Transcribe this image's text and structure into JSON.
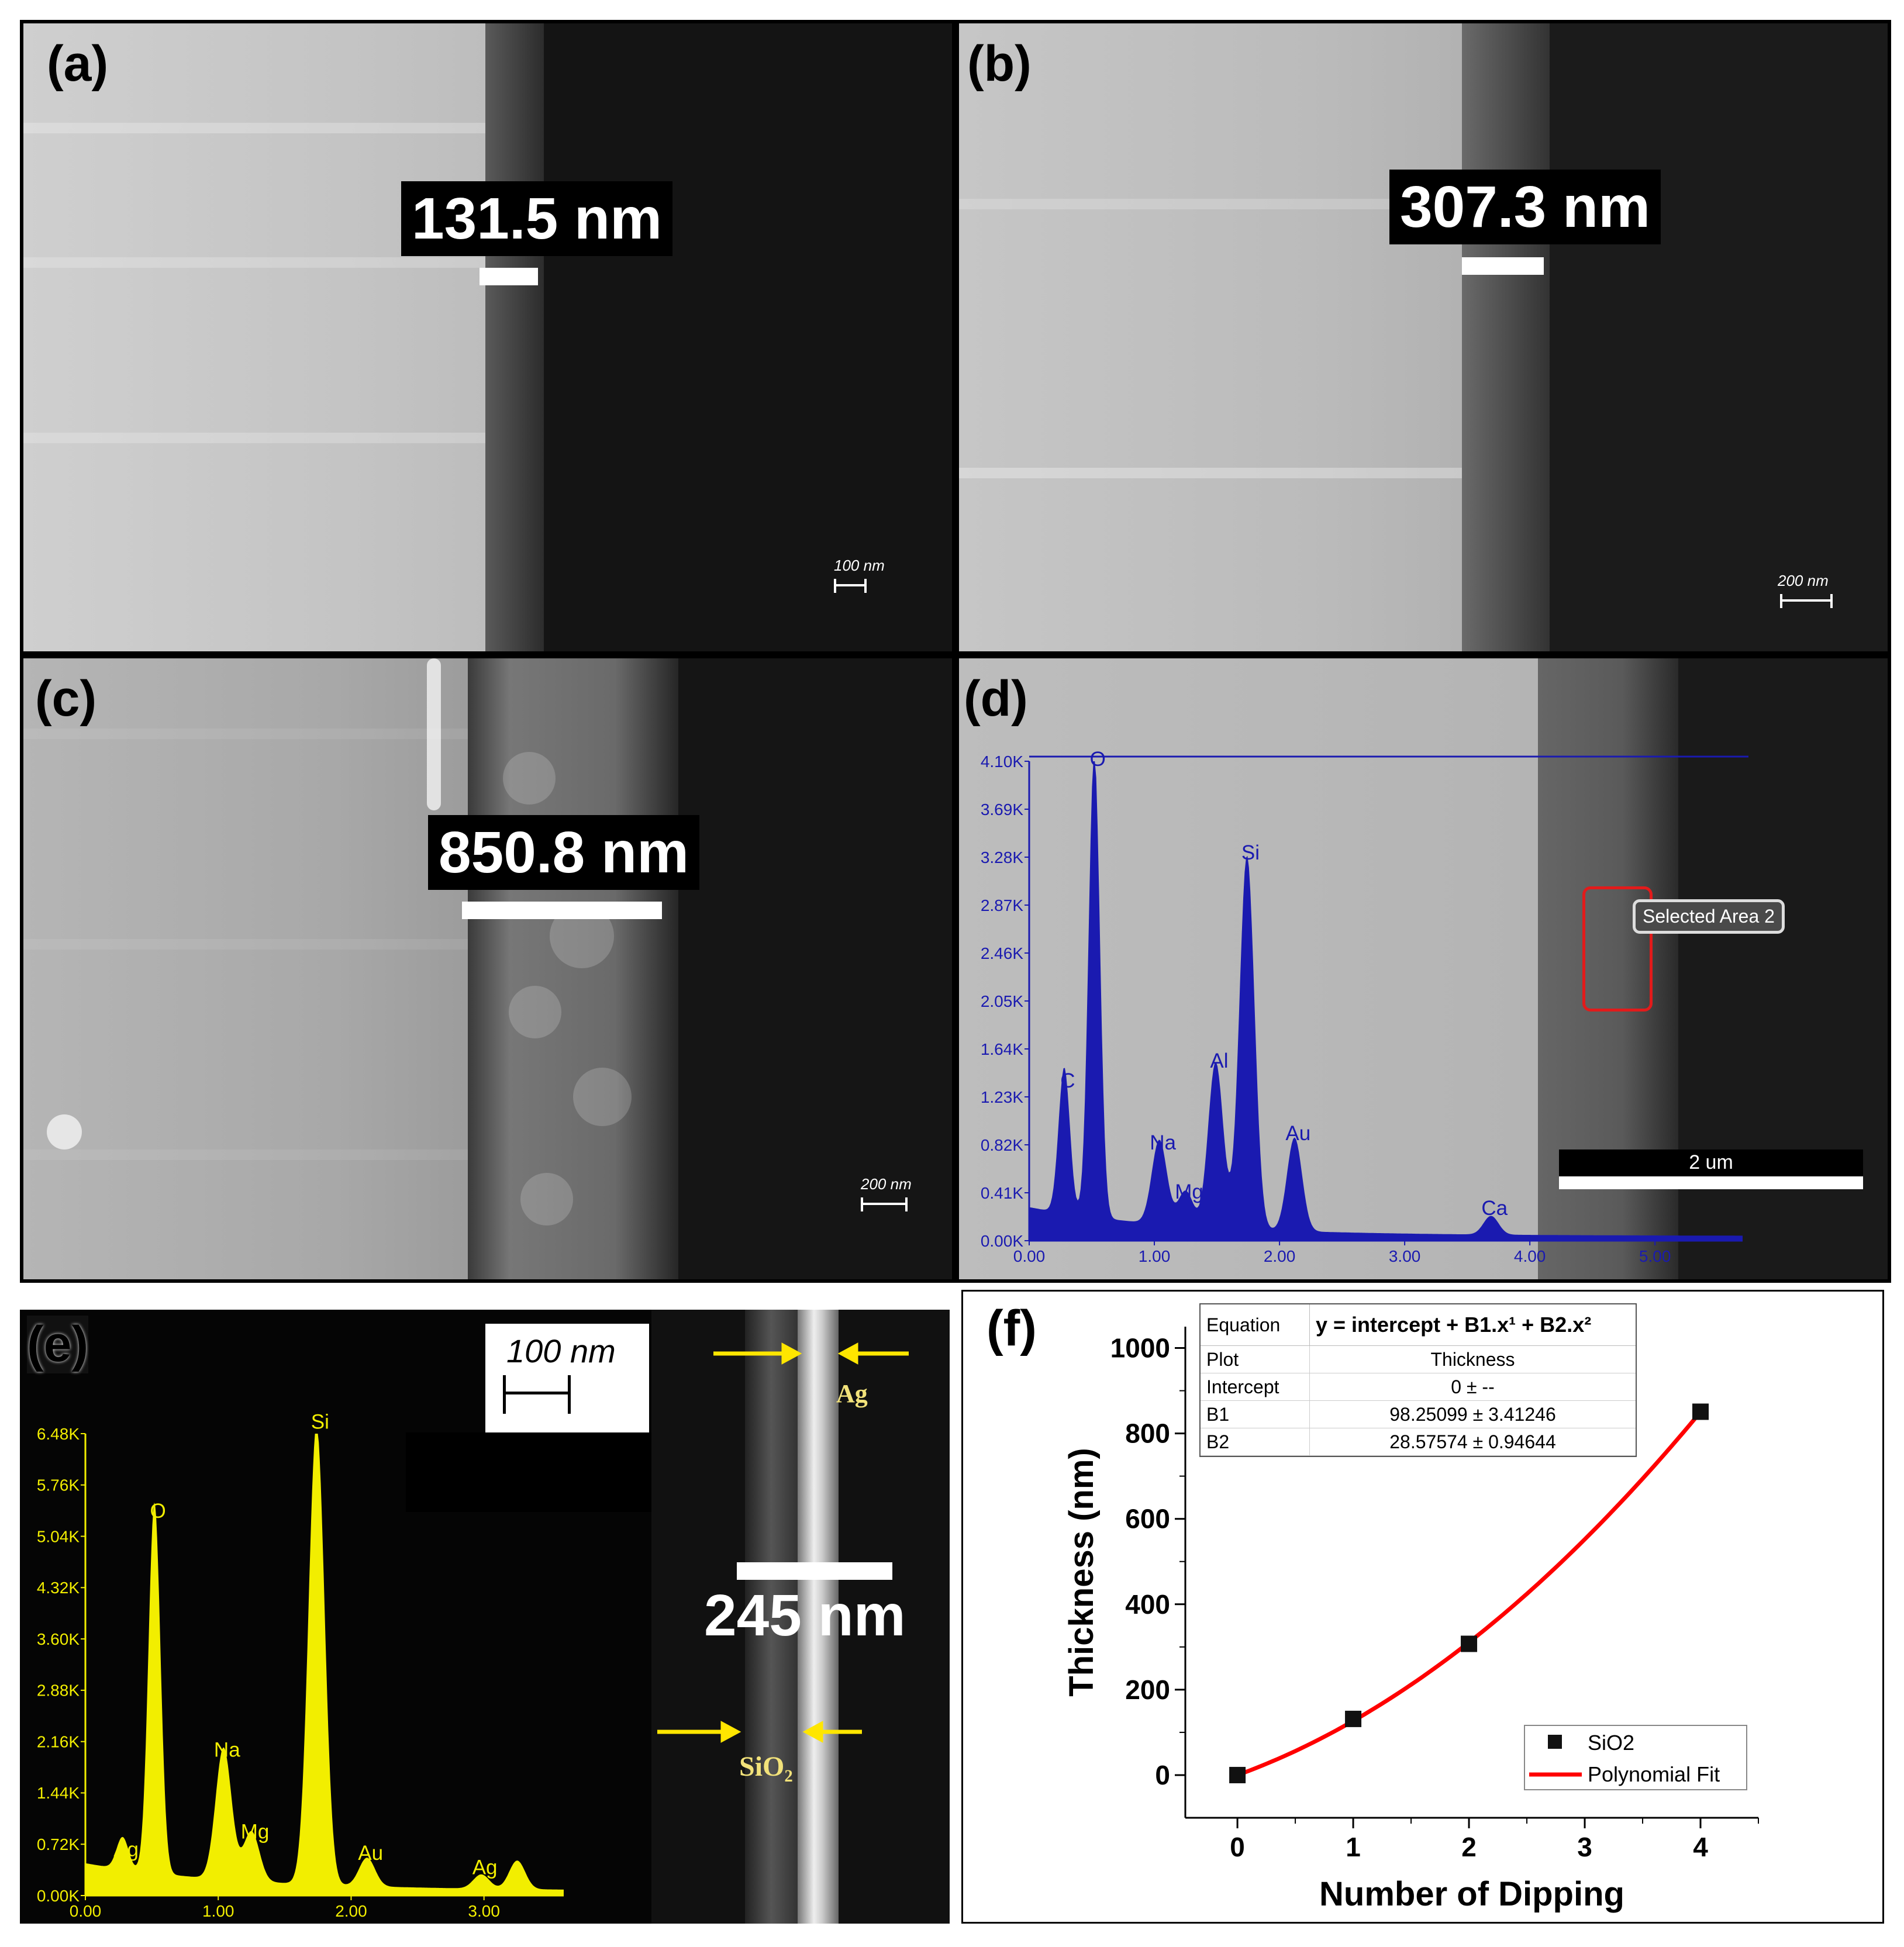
{
  "panels": {
    "a": {
      "label": "(a)",
      "measurement": "131.5 nm",
      "scale": "100 nm"
    },
    "b": {
      "label": "(b)",
      "measurement": "307.3 nm",
      "scale": "200 nm"
    },
    "c": {
      "label": "(c)",
      "measurement": "850.8 nm",
      "scale": "200 nm"
    },
    "d": {
      "label": "(d)",
      "selected_area": "Selected Area 2",
      "scale": "2 um",
      "y_ticks": [
        "4.10K",
        "3.69K",
        "3.28K",
        "2.87K",
        "2.46K",
        "2.05K",
        "1.64K",
        "1.23K",
        "0.82K",
        "0.41K",
        "0.00K"
      ],
      "x_ticks": [
        "0.00",
        "1.00",
        "2.00",
        "3.00",
        "4.00",
        "5.00"
      ],
      "peaks": [
        {
          "element": "C",
          "x": 0.28,
          "y": 1.25
        },
        {
          "element": "O",
          "x": 0.52,
          "y": 4.0
        },
        {
          "element": "Na",
          "x": 1.04,
          "y": 0.72
        },
        {
          "element": "Mg",
          "x": 1.25,
          "y": 0.3
        },
        {
          "element": "Al",
          "x": 1.49,
          "y": 1.42
        },
        {
          "element": "Si",
          "x": 1.74,
          "y": 3.2
        },
        {
          "element": "Au",
          "x": 2.12,
          "y": 0.8
        },
        {
          "element": "Ca",
          "x": 3.69,
          "y": 0.16
        }
      ]
    },
    "e": {
      "label": "(e)",
      "scale": "100 nm",
      "measurement": "245 nm",
      "layer_top": "Ag",
      "layer_bottom": "SiO₂",
      "y_ticks": [
        "6.48K",
        "5.76K",
        "5.04K",
        "4.32K",
        "3.60K",
        "2.88K",
        "2.16K",
        "1.44K",
        "0.72K",
        "0.00K"
      ],
      "x_ticks": [
        "0.00",
        "1.00",
        "2.00",
        "3.00"
      ],
      "peaks": [
        {
          "element": "Ag",
          "x": 0.28,
          "y": 0.45
        },
        {
          "element": "O",
          "x": 0.52,
          "y": 5.2
        },
        {
          "element": "Na",
          "x": 1.04,
          "y": 1.85
        },
        {
          "element": "Mg",
          "x": 1.25,
          "y": 0.7
        },
        {
          "element": "Si",
          "x": 1.74,
          "y": 6.45
        },
        {
          "element": "Au",
          "x": 2.12,
          "y": 0.4
        },
        {
          "element": "Ag",
          "x": 2.98,
          "y": 0.2
        },
        {
          "element": "",
          "x": 3.25,
          "y": 0.4
        }
      ]
    },
    "f": {
      "label": "(f)"
    }
  },
  "colors": {
    "eds_d": "#1a1ab0",
    "eds_e": "#f2ee00",
    "fit": "#ff0000",
    "arrow": "#ffe600"
  },
  "chart_data": {
    "type": "scatter",
    "xlabel": "Number of Dipping",
    "ylabel": "Thickness (nm)",
    "xlim": [
      -0.45,
      4.5
    ],
    "ylim": [
      -100,
      1050
    ],
    "x_ticks": [
      "0",
      "1",
      "2",
      "3",
      "4"
    ],
    "y_ticks": [
      "0",
      "200",
      "400",
      "600",
      "800",
      "1000"
    ],
    "series": [
      {
        "name": "SiO2",
        "x": [
          0,
          1,
          2,
          4
        ],
        "y": [
          0,
          131.5,
          307.3,
          850.8
        ]
      },
      {
        "name": "Polynomial Fit",
        "coefficients": {
          "intercept": 0,
          "B1": 98.25099,
          "B2": 28.57574
        }
      }
    ],
    "legend": {
      "position": "bottom-right",
      "entries": [
        "SiO2",
        "Polynomial Fit"
      ]
    },
    "fit_table": {
      "equation_label": "Equation",
      "equation": "y =  intercept + B1.x¹ + B2.x²",
      "rows": [
        {
          "name": "Plot",
          "value": "Thickness"
        },
        {
          "name": "Intercept",
          "value": "0 ± --"
        },
        {
          "name": "B1",
          "value": "98.25099 ± 3.41246"
        },
        {
          "name": "B2",
          "value": "28.57574 ± 0.94644"
        }
      ]
    }
  }
}
